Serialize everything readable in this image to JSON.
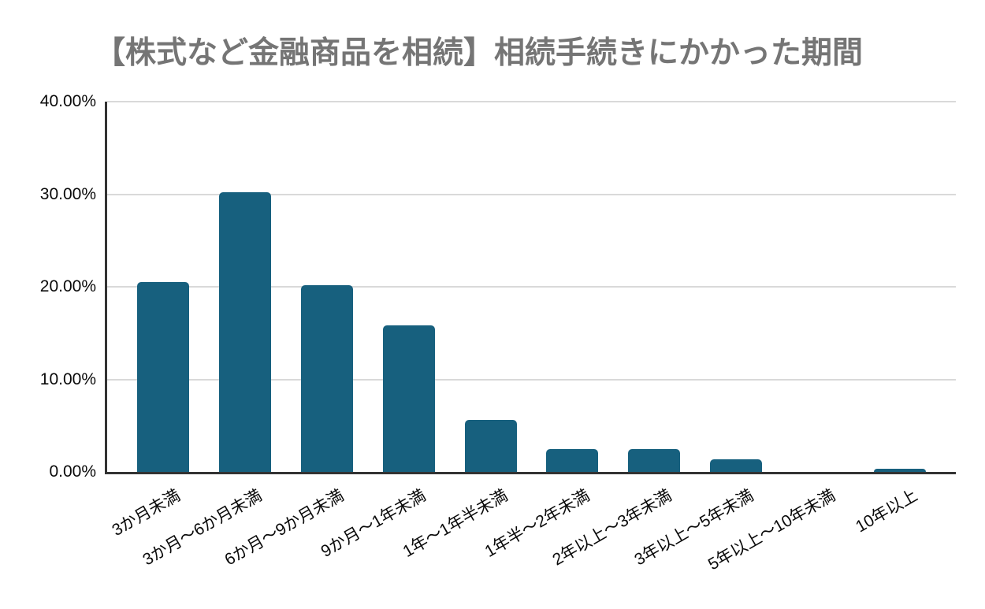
{
  "chart_data": {
    "type": "bar",
    "title": "【株式など金融商品を相続】相続手続きにかかった期間",
    "categories": [
      "3か月未満",
      "3か月〜6か月未満",
      "6か月〜9か月未満",
      "9か月〜1年未満",
      "1年〜1年半未満",
      "1年半〜2年未満",
      "2年以上〜3年未満",
      "3年以上〜5年未満",
      "5年以上〜10年未満",
      "10年以上"
    ],
    "values": [
      20.5,
      30.2,
      20.2,
      15.8,
      5.6,
      2.5,
      2.5,
      1.4,
      0,
      0.3
    ],
    "unit": "%",
    "xlabel": "",
    "ylabel": "",
    "ylim": [
      0,
      40
    ],
    "y_ticks": [
      0,
      10,
      20,
      30,
      40
    ],
    "y_tick_labels": [
      "0.00%",
      "10.00%",
      "20.00%",
      "30.00%",
      "40.00%"
    ],
    "grid": true,
    "legend": false,
    "x_label_rotation_deg": -30,
    "colors": {
      "bar": "#17607e",
      "title": "#757575",
      "gridline": "#d9d9d9",
      "axis": "#333333",
      "tick_text": "#0a0a0a",
      "background": "#ffffff"
    }
  }
}
